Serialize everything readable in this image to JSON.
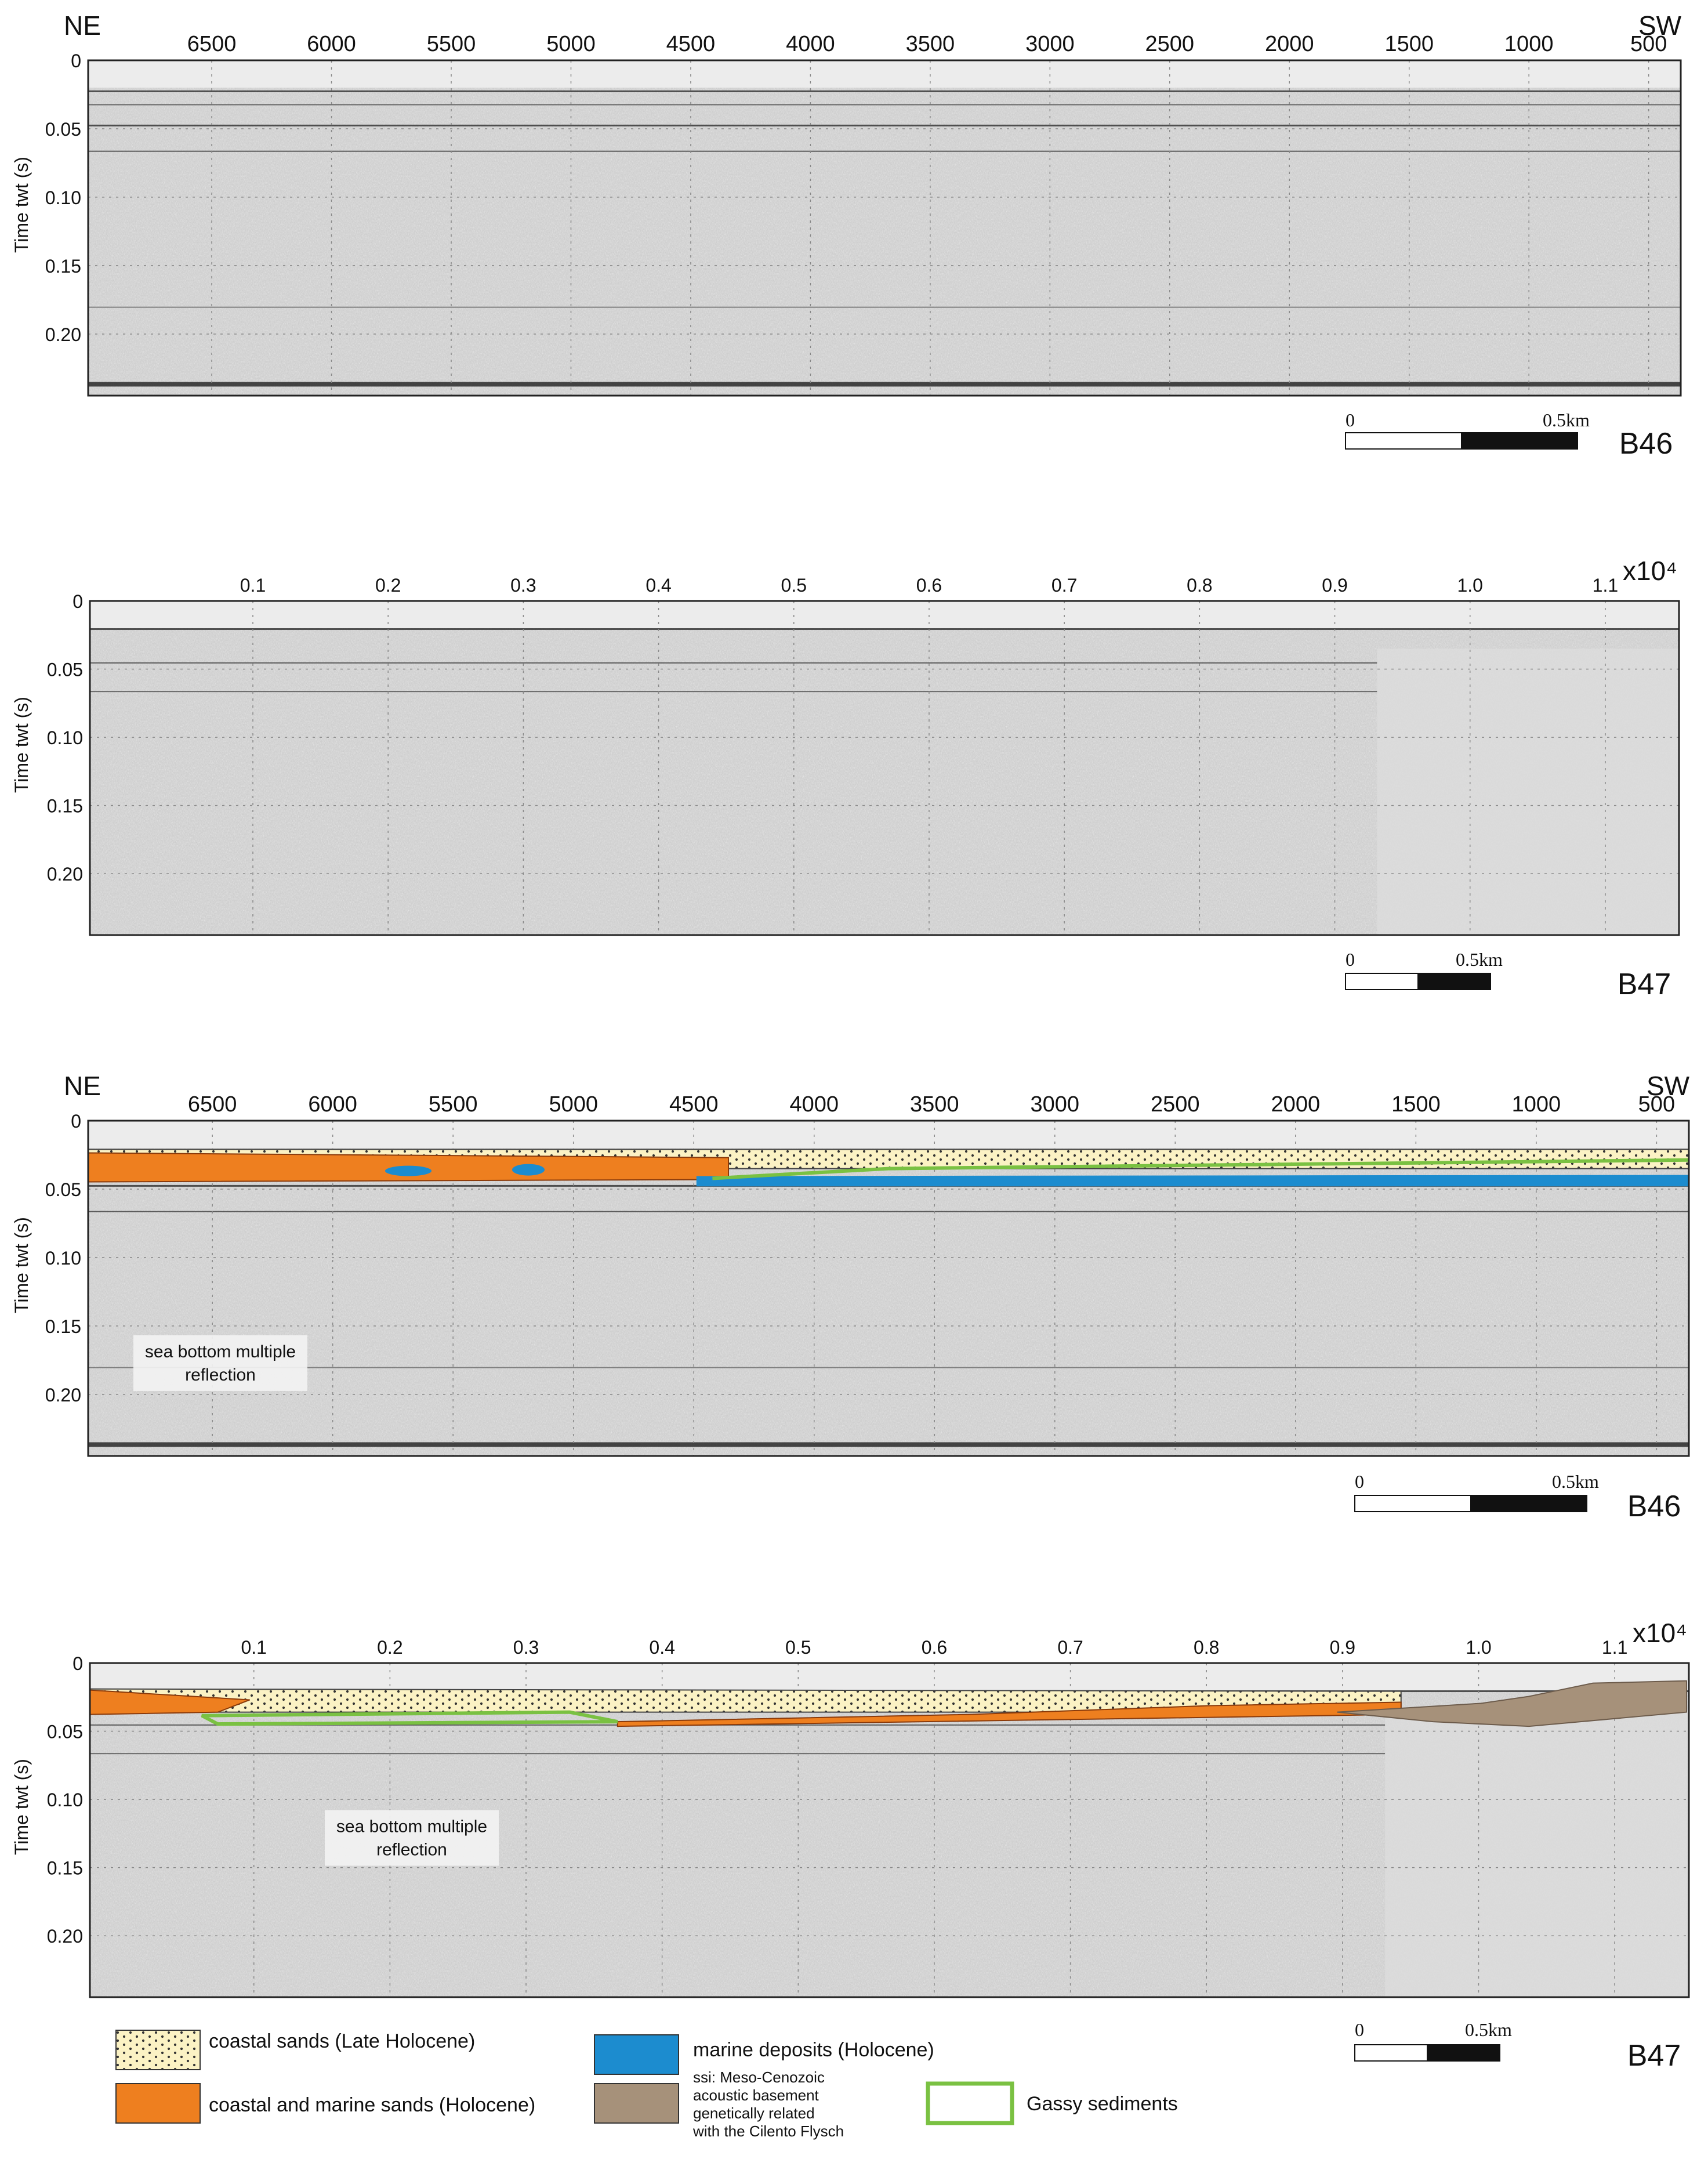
{
  "colors": {
    "coastal_sands_late_holocene": "#fbf2c4",
    "coastal_marine_sands": "#ee7f1f",
    "marine_deposits": "#1c8ccf",
    "acoustic_basement": "#a6917a",
    "gassy_sediments": "#7ac142",
    "seismic_background": "#c9c9c9"
  },
  "panels": [
    {
      "id": "B46",
      "line_label": "B46",
      "interpreted": false,
      "left_label": "NE",
      "right_label": "SW",
      "exponent_label": "",
      "x_ticks": [
        "6500",
        "6000",
        "5500",
        "5000",
        "4500",
        "4000",
        "3500",
        "3000",
        "2500",
        "2000",
        "1500",
        "1000",
        "500"
      ],
      "y_ticks": [
        "0",
        "0.05",
        "0.10",
        "0.15",
        "0.20"
      ],
      "y_axis_label": "Time twt (s)",
      "scale_bar": {
        "start": "0",
        "end": "0.5km"
      }
    },
    {
      "id": "B47",
      "line_label": "B47",
      "interpreted": false,
      "left_label": "",
      "right_label": "",
      "exponent_label": "x10⁴",
      "x_ticks": [
        "0.1",
        "0.2",
        "0.3",
        "0.4",
        "0.5",
        "0.6",
        "0.7",
        "0.8",
        "0.9",
        "1.0",
        "1.1"
      ],
      "y_ticks": [
        "0",
        "0.05",
        "0.10",
        "0.15",
        "0.20"
      ],
      "y_axis_label": "Time twt (s)",
      "scale_bar": {
        "start": "0",
        "end": "0.5km"
      }
    },
    {
      "id": "B46",
      "line_label": "B46",
      "interpreted": true,
      "left_label": "NE",
      "right_label": "SW",
      "exponent_label": "",
      "x_ticks": [
        "6500",
        "6000",
        "5500",
        "5000",
        "4500",
        "4000",
        "3500",
        "3000",
        "2500",
        "2000",
        "1500",
        "1000",
        "500"
      ],
      "y_ticks": [
        "0",
        "0.05",
        "0.10",
        "0.15",
        "0.20"
      ],
      "y_axis_label": "Time twt (s)",
      "annotation": [
        "sea bottom multiple",
        "reflection"
      ],
      "scale_bar": {
        "start": "0",
        "end": "0.5km"
      }
    },
    {
      "id": "B47",
      "line_label": "B47",
      "interpreted": true,
      "left_label": "",
      "right_label": "",
      "exponent_label": "x10⁴",
      "x_ticks": [
        "0.1",
        "0.2",
        "0.3",
        "0.4",
        "0.5",
        "0.6",
        "0.7",
        "0.8",
        "0.9",
        "1.0",
        "1.1"
      ],
      "y_ticks": [
        "0",
        "0.05",
        "0.10",
        "0.15",
        "0.20"
      ],
      "y_axis_label": "Time twt (s)",
      "annotation": [
        "sea bottom multiple",
        "reflection"
      ],
      "scale_bar": {
        "start": "0",
        "end": "0.5km"
      }
    }
  ],
  "legend": {
    "items": [
      {
        "key": "coastal_sands_late_holocene",
        "lines": [
          "coastal sands (Late Holocene)"
        ]
      },
      {
        "key": "coastal_marine_sands",
        "lines": [
          "coastal and marine sands (Holocene)"
        ]
      },
      {
        "key": "marine_deposits",
        "lines": [
          "marine deposits (Holocene)"
        ]
      },
      {
        "key": "acoustic_basement",
        "lines": [
          "ssi: Meso-Cenozoic",
          "acoustic basement",
          "genetically related",
          "with the Cilento Flysch"
        ]
      },
      {
        "key": "gassy_sediments",
        "lines": [
          "Gassy sediments"
        ]
      }
    ]
  }
}
